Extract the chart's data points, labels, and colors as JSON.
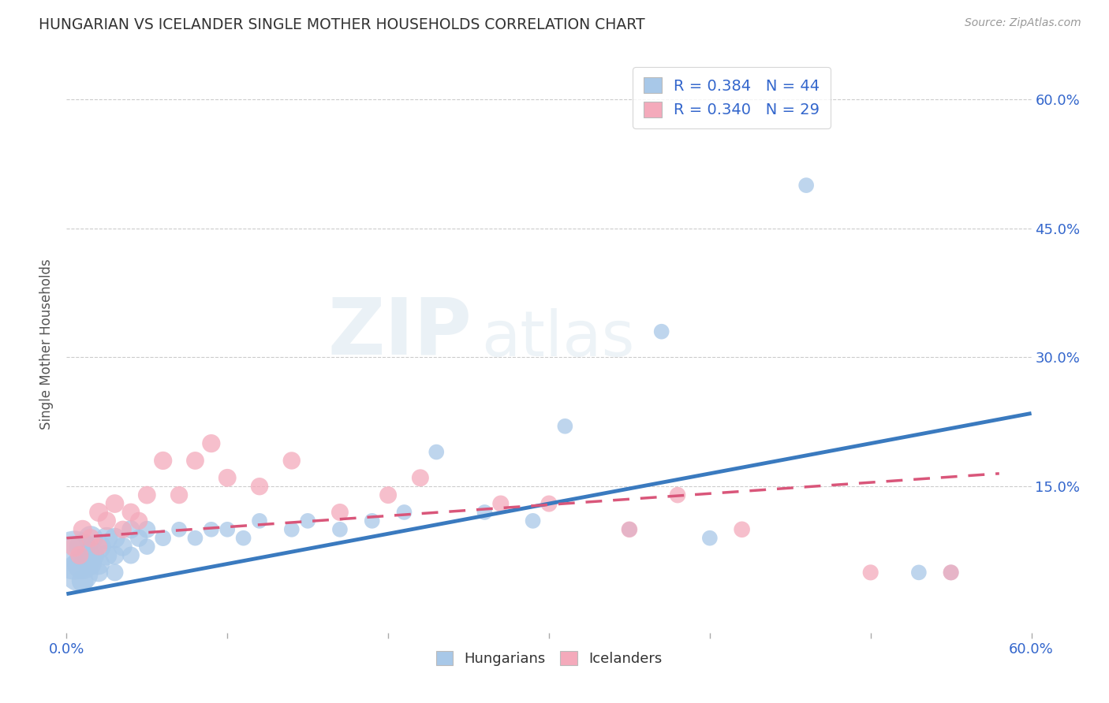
{
  "title": "HUNGARIAN VS ICELANDER SINGLE MOTHER HOUSEHOLDS CORRELATION CHART",
  "source": "Source: ZipAtlas.com",
  "ylabel": "Single Mother Households",
  "xlim": [
    0.0,
    0.6
  ],
  "ylim": [
    -0.02,
    0.65
  ],
  "xticks": [
    0.0,
    0.1,
    0.2,
    0.3,
    0.4,
    0.5,
    0.6
  ],
  "xticklabels": [
    "0.0%",
    "",
    "",
    "",
    "",
    "",
    "60.0%"
  ],
  "yticks": [
    0.15,
    0.3,
    0.45,
    0.6
  ],
  "yticklabels": [
    "15.0%",
    "30.0%",
    "45.0%",
    "60.0%"
  ],
  "watermark_zip": "ZIP",
  "watermark_atlas": "atlas",
  "hungarian_r": "0.384",
  "hungarian_n": "44",
  "icelander_r": "0.340",
  "icelander_n": "29",
  "hungarian_color": "#a8c8e8",
  "icelander_color": "#f4aabb",
  "hungarian_line_color": "#3a7abf",
  "icelander_line_color": "#d9567a",
  "legend_hungarian": "Hungarians",
  "legend_icelander": "Icelanders",
  "hungarian_x": [
    0.005,
    0.008,
    0.01,
    0.01,
    0.01,
    0.015,
    0.015,
    0.015,
    0.02,
    0.02,
    0.02,
    0.025,
    0.025,
    0.03,
    0.03,
    0.03,
    0.035,
    0.04,
    0.04,
    0.045,
    0.05,
    0.05,
    0.06,
    0.07,
    0.08,
    0.09,
    0.1,
    0.11,
    0.12,
    0.14,
    0.15,
    0.17,
    0.19,
    0.21,
    0.23,
    0.26,
    0.29,
    0.31,
    0.35,
    0.37,
    0.4,
    0.46,
    0.53,
    0.55
  ],
  "hungarian_y": [
    0.07,
    0.05,
    0.06,
    0.08,
    0.04,
    0.07,
    0.09,
    0.06,
    0.08,
    0.06,
    0.05,
    0.09,
    0.07,
    0.09,
    0.07,
    0.05,
    0.08,
    0.1,
    0.07,
    0.09,
    0.1,
    0.08,
    0.09,
    0.1,
    0.09,
    0.1,
    0.1,
    0.09,
    0.11,
    0.1,
    0.11,
    0.1,
    0.11,
    0.12,
    0.19,
    0.12,
    0.11,
    0.22,
    0.1,
    0.33,
    0.09,
    0.5,
    0.05,
    0.05
  ],
  "hungarian_size": [
    2000,
    1200,
    800,
    600,
    400,
    600,
    500,
    400,
    500,
    400,
    300,
    400,
    350,
    350,
    300,
    250,
    300,
    280,
    250,
    260,
    250,
    220,
    220,
    200,
    200,
    200,
    200,
    200,
    200,
    200,
    200,
    200,
    200,
    200,
    200,
    200,
    200,
    200,
    200,
    200,
    200,
    200,
    200,
    200
  ],
  "icelander_x": [
    0.005,
    0.008,
    0.01,
    0.015,
    0.02,
    0.02,
    0.025,
    0.03,
    0.035,
    0.04,
    0.045,
    0.05,
    0.06,
    0.07,
    0.08,
    0.09,
    0.1,
    0.12,
    0.14,
    0.17,
    0.2,
    0.22,
    0.27,
    0.3,
    0.35,
    0.38,
    0.42,
    0.5,
    0.55
  ],
  "icelander_y": [
    0.08,
    0.07,
    0.1,
    0.09,
    0.12,
    0.08,
    0.11,
    0.13,
    0.1,
    0.12,
    0.11,
    0.14,
    0.18,
    0.14,
    0.18,
    0.2,
    0.16,
    0.15,
    0.18,
    0.12,
    0.14,
    0.16,
    0.13,
    0.13,
    0.1,
    0.14,
    0.1,
    0.05,
    0.05
  ],
  "icelander_size": [
    350,
    280,
    300,
    280,
    300,
    250,
    280,
    290,
    260,
    270,
    260,
    270,
    280,
    260,
    270,
    280,
    270,
    260,
    260,
    250,
    250,
    250,
    230,
    230,
    220,
    220,
    220,
    210,
    210
  ],
  "hung_line_x0": 0.0,
  "hung_line_y0": 0.025,
  "hung_line_x1": 0.6,
  "hung_line_y1": 0.235,
  "icel_line_x0": 0.0,
  "icel_line_y0": 0.09,
  "icel_line_x1": 0.58,
  "icel_line_y1": 0.165
}
